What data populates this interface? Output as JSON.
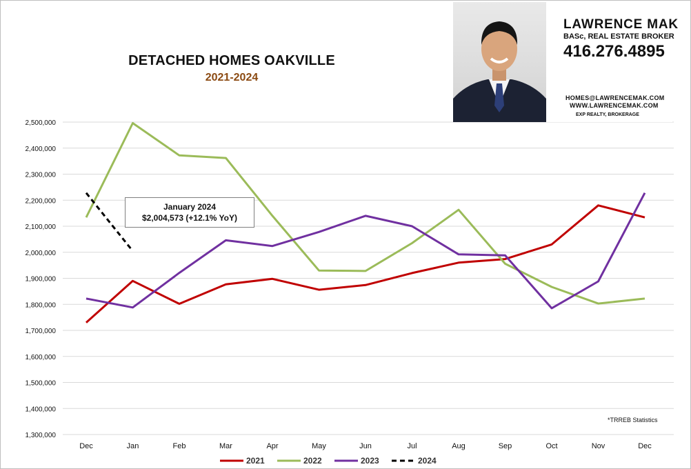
{
  "header": {
    "title": "DETACHED HOMES OAKVILLE",
    "subtitle": "2021-2024"
  },
  "agent": {
    "name": "LAWRENCE MAK",
    "credentials": "BASc, REAL ESTATE BROKER",
    "phone": "416.276.4895",
    "email": "HOMES@LAWRENCEMAK.COM",
    "website": "WWW.LAWRENCEMAK.COM",
    "brokerage": "EXP REALTY, BROKERAGE"
  },
  "annotation": {
    "line1": "January 2024",
    "line2": "$2,004,573  (+12.1%  YoY)"
  },
  "source_note": "*TRREB Statistics",
  "chart_data": {
    "type": "line",
    "categories": [
      "Dec",
      "Jan",
      "Feb",
      "Mar",
      "Apr",
      "May",
      "Jun",
      "Jul",
      "Aug",
      "Sep",
      "Oct",
      "Nov",
      "Dec"
    ],
    "ylim": [
      1300000,
      2500000
    ],
    "yticks": [
      1300000,
      1400000,
      1500000,
      1600000,
      1700000,
      1800000,
      1900000,
      2000000,
      2100000,
      2200000,
      2300000,
      2400000,
      2500000
    ],
    "ytick_labels": [
      "1,300,000",
      "1,400,000",
      "1,500,000",
      "1,600,000",
      "1,700,000",
      "1,800,000",
      "1,900,000",
      "2,000,000",
      "2,100,000",
      "2,200,000",
      "2,300,000",
      "2,400,000",
      "2,500,000"
    ],
    "grid": "horizontal",
    "legend_position": "bottom",
    "series": [
      {
        "name": "2021",
        "color": "#c00000",
        "dash": "solid",
        "values": [
          1730000,
          1890000,
          1802000,
          1877000,
          1898000,
          1856000,
          1874000,
          1920000,
          1960000,
          1974000,
          2030000,
          2180000,
          2134000
        ]
      },
      {
        "name": "2022",
        "color": "#9bbb59",
        "dash": "solid",
        "values": [
          2134000,
          2496000,
          2372000,
          2362000,
          2140000,
          1930000,
          1928000,
          2035000,
          2163000,
          1956000,
          1867000,
          1803000,
          1822000
        ]
      },
      {
        "name": "2023",
        "color": "#7030a0",
        "dash": "solid",
        "values": [
          1822000,
          1788000,
          1921000,
          2046000,
          2024000,
          2078000,
          2140000,
          2100000,
          1992000,
          1988000,
          1785000,
          1888000,
          2228000
        ]
      },
      {
        "name": "2024",
        "color": "#000000",
        "dash": "dashed",
        "values": [
          2228000,
          2004573,
          null,
          null,
          null,
          null,
          null,
          null,
          null,
          null,
          null,
          null,
          null
        ]
      }
    ]
  }
}
